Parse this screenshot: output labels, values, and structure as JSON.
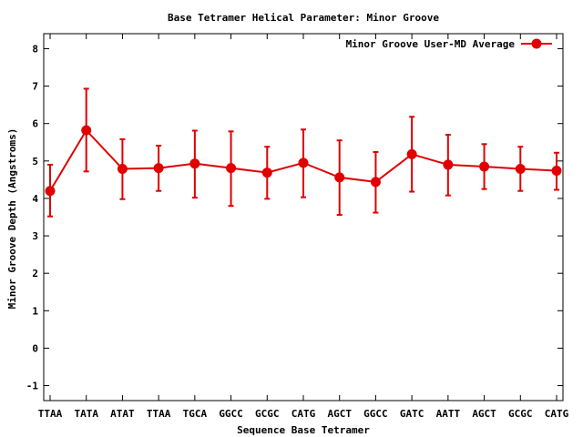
{
  "chart_data": {
    "type": "line",
    "title": "Base Tetramer Helical Parameter: Minor Groove",
    "xlabel": "Sequence Base Tetramer",
    "ylabel": "Minor Groove Depth (Angstroms)",
    "categories": [
      "TTAA",
      "TATA",
      "ATAT",
      "TTAA",
      "TGCA",
      "GGCC",
      "GCGC",
      "CATG",
      "AGCT",
      "GGCC",
      "GATC",
      "AATT",
      "AGCT",
      "GCGC",
      "CATG"
    ],
    "ylim": [
      -1.4,
      8.4
    ],
    "yticks": [
      -1,
      0,
      1,
      2,
      3,
      4,
      5,
      6,
      7,
      8
    ],
    "grid": false,
    "legend_position": "top-right",
    "series": [
      {
        "name": "Minor Groove User-MD Average",
        "color": "#e00000",
        "marker": "circle",
        "values": [
          4.2,
          5.82,
          4.79,
          4.81,
          4.93,
          4.81,
          4.69,
          4.95,
          4.56,
          4.44,
          5.18,
          4.9,
          4.85,
          4.79,
          4.74
        ],
        "error_low": [
          3.52,
          4.72,
          3.98,
          4.2,
          4.02,
          3.8,
          3.99,
          4.03,
          3.56,
          3.62,
          4.18,
          4.08,
          4.25,
          4.2,
          4.23
        ],
        "error_high": [
          4.9,
          6.93,
          5.58,
          5.41,
          5.81,
          5.79,
          5.38,
          5.84,
          5.55,
          5.24,
          6.18,
          5.7,
          5.45,
          5.38,
          5.22
        ]
      }
    ]
  }
}
